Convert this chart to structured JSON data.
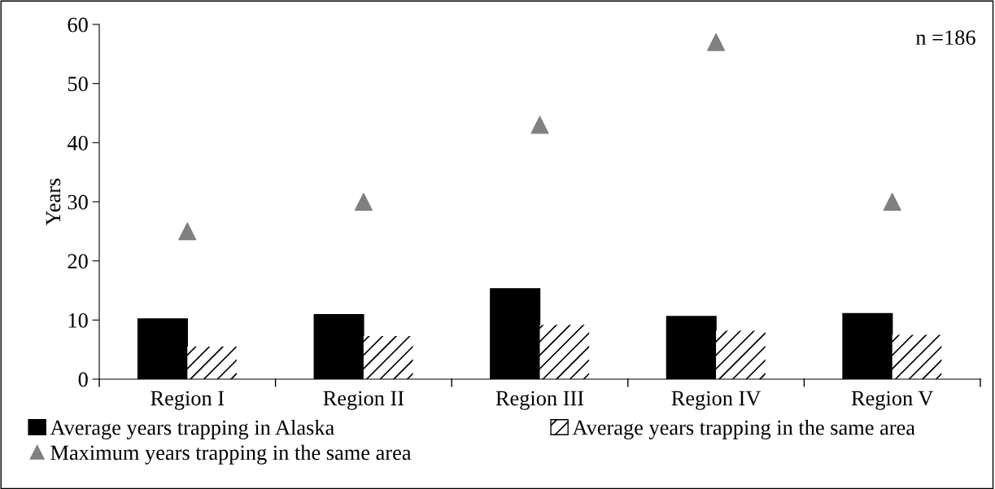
{
  "chart_data": {
    "type": "bar",
    "ylabel": "Years",
    "categories": [
      "Region I",
      "Region II",
      "Region III",
      "Region IV",
      "Region V"
    ],
    "series": [
      {
        "name": "Average years trapping in Alaska",
        "color": "#000000",
        "values": [
          10.2,
          10.9,
          15.3,
          10.6,
          11.1
        ]
      },
      {
        "name": "Average years trapping in the same area",
        "color": "#ffffff",
        "values": [
          5.5,
          7.3,
          9.2,
          8.2,
          7.5
        ]
      },
      {
        "name": "Maximum years trapping in the same area",
        "type": "scatter",
        "color": "#808080",
        "marker": "triangle",
        "values": [
          25,
          30,
          43,
          57,
          30
        ]
      }
    ],
    "ylim": [
      0,
      60
    ],
    "yticks": [
      0,
      10,
      20,
      30,
      40,
      50,
      60
    ],
    "grid": false,
    "legend": "bottom",
    "annotations": [
      "n =186"
    ]
  }
}
